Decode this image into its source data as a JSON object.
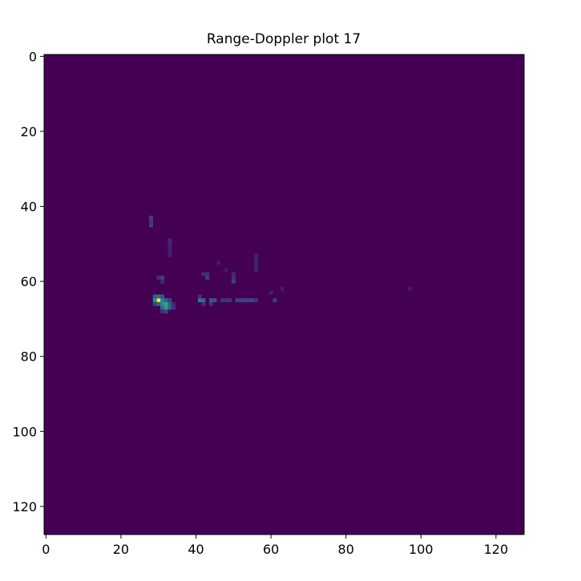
{
  "chart_data": {
    "type": "heatmap",
    "title": "Range-Doppler plot 17",
    "xlabel": "",
    "ylabel": "",
    "xlim": [
      -0.5,
      127.5
    ],
    "ylim": [
      127.5,
      -0.5
    ],
    "grid": false,
    "colormap": "viridis",
    "colormap_colors": [
      "#440154",
      "#3b528b",
      "#21918c",
      "#5ec962",
      "#fde725"
    ],
    "x_ticks": [
      0,
      20,
      40,
      60,
      80,
      100,
      120
    ],
    "y_ticks": [
      0,
      20,
      40,
      60,
      80,
      100,
      120
    ],
    "background_value": 0,
    "cells": [
      {
        "x": 28,
        "y": 43,
        "v": 0.2
      },
      {
        "x": 28,
        "y": 44,
        "v": 0.15
      },
      {
        "x": 28,
        "y": 45,
        "v": 0.2
      },
      {
        "x": 30,
        "y": 65,
        "v": 1.0
      },
      {
        "x": 29,
        "y": 65,
        "v": 0.5
      },
      {
        "x": 31,
        "y": 65,
        "v": 0.45
      },
      {
        "x": 30,
        "y": 64,
        "v": 0.35
      },
      {
        "x": 29,
        "y": 64,
        "v": 0.3
      },
      {
        "x": 31,
        "y": 64,
        "v": 0.25
      },
      {
        "x": 31,
        "y": 66,
        "v": 0.5
      },
      {
        "x": 32,
        "y": 66,
        "v": 0.6
      },
      {
        "x": 32,
        "y": 67,
        "v": 0.55
      },
      {
        "x": 31,
        "y": 67,
        "v": 0.35
      },
      {
        "x": 33,
        "y": 67,
        "v": 0.3
      },
      {
        "x": 33,
        "y": 66,
        "v": 0.3
      },
      {
        "x": 30,
        "y": 66,
        "v": 0.3
      },
      {
        "x": 29,
        "y": 66,
        "v": 0.2
      },
      {
        "x": 32,
        "y": 65,
        "v": 0.3
      },
      {
        "x": 33,
        "y": 65,
        "v": 0.2
      },
      {
        "x": 32,
        "y": 68,
        "v": 0.2
      },
      {
        "x": 31,
        "y": 68,
        "v": 0.15
      },
      {
        "x": 34,
        "y": 66,
        "v": 0.12
      },
      {
        "x": 34,
        "y": 67,
        "v": 0.15
      },
      {
        "x": 31,
        "y": 59,
        "v": 0.2
      },
      {
        "x": 30,
        "y": 59,
        "v": 0.15
      },
      {
        "x": 31,
        "y": 60,
        "v": 0.12
      },
      {
        "x": 33,
        "y": 49,
        "v": 0.12
      },
      {
        "x": 33,
        "y": 50,
        "v": 0.12
      },
      {
        "x": 33,
        "y": 51,
        "v": 0.1
      },
      {
        "x": 33,
        "y": 52,
        "v": 0.1
      },
      {
        "x": 33,
        "y": 53,
        "v": 0.1
      },
      {
        "x": 41,
        "y": 65,
        "v": 0.4
      },
      {
        "x": 42,
        "y": 65,
        "v": 0.3
      },
      {
        "x": 41,
        "y": 64,
        "v": 0.15
      },
      {
        "x": 42,
        "y": 66,
        "v": 0.15
      },
      {
        "x": 44,
        "y": 65,
        "v": 0.25
      },
      {
        "x": 45,
        "y": 65,
        "v": 0.25
      },
      {
        "x": 44,
        "y": 66,
        "v": 0.15
      },
      {
        "x": 42,
        "y": 58,
        "v": 0.15
      },
      {
        "x": 43,
        "y": 59,
        "v": 0.2
      },
      {
        "x": 43,
        "y": 58,
        "v": 0.15
      },
      {
        "x": 47,
        "y": 65,
        "v": 0.15
      },
      {
        "x": 48,
        "y": 65,
        "v": 0.15
      },
      {
        "x": 49,
        "y": 65,
        "v": 0.15
      },
      {
        "x": 51,
        "y": 65,
        "v": 0.2
      },
      {
        "x": 52,
        "y": 65,
        "v": 0.2
      },
      {
        "x": 53,
        "y": 65,
        "v": 0.2
      },
      {
        "x": 54,
        "y": 65,
        "v": 0.2
      },
      {
        "x": 55,
        "y": 65,
        "v": 0.2
      },
      {
        "x": 56,
        "y": 65,
        "v": 0.15
      },
      {
        "x": 50,
        "y": 60,
        "v": 0.2
      },
      {
        "x": 50,
        "y": 59,
        "v": 0.15
      },
      {
        "x": 50,
        "y": 58,
        "v": 0.12
      },
      {
        "x": 46,
        "y": 55,
        "v": 0.08
      },
      {
        "x": 48,
        "y": 57,
        "v": 0.08
      },
      {
        "x": 56,
        "y": 53,
        "v": 0.1
      },
      {
        "x": 56,
        "y": 54,
        "v": 0.1
      },
      {
        "x": 56,
        "y": 55,
        "v": 0.1
      },
      {
        "x": 56,
        "y": 56,
        "v": 0.1
      },
      {
        "x": 56,
        "y": 57,
        "v": 0.1
      },
      {
        "x": 61,
        "y": 65,
        "v": 0.2
      },
      {
        "x": 60,
        "y": 63,
        "v": 0.1
      },
      {
        "x": 63,
        "y": 62,
        "v": 0.08
      },
      {
        "x": 97,
        "y": 62,
        "v": 0.08
      }
    ]
  }
}
